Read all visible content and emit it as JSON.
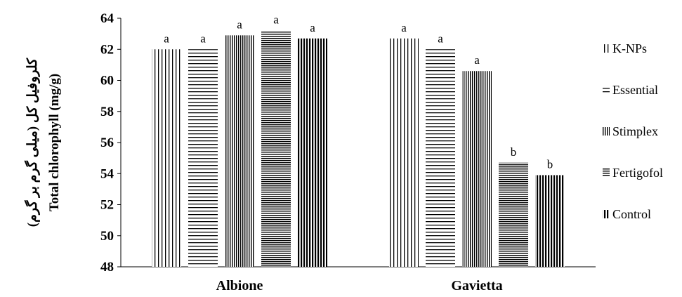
{
  "chart_data": {
    "type": "bar",
    "ylabel_fa": "کلروفیل کل (میلی گرم بر گرم)",
    "ylabel": "Total chlorophyll  (mg/g)",
    "ylim": [
      48,
      64
    ],
    "yticks": [
      48,
      50,
      52,
      54,
      56,
      58,
      60,
      62,
      64
    ],
    "categories": [
      "Albione",
      "Gavietta"
    ],
    "series": [
      {
        "name": "K-NPs",
        "pattern": "vertical-sparse",
        "values": [
          62.0,
          62.7
        ],
        "letters": [
          "a",
          "a"
        ]
      },
      {
        "name": "Essential",
        "pattern": "horizontal-sparse",
        "values": [
          62.0,
          62.0
        ],
        "letters": [
          "a",
          "a"
        ]
      },
      {
        "name": "Stimplex",
        "pattern": "vertical-dense",
        "values": [
          62.9,
          60.6
        ],
        "letters": [
          "a",
          "a"
        ]
      },
      {
        "name": "Fertigofol",
        "pattern": "horizontal-dense",
        "values": [
          63.2,
          54.7
        ],
        "letters": [
          "a",
          "b"
        ]
      },
      {
        "name": "Control",
        "pattern": "vertical-thick",
        "values": [
          62.7,
          53.9
        ],
        "letters": [
          "a",
          "b"
        ]
      }
    ],
    "legend_position": "right",
    "grid": false
  }
}
